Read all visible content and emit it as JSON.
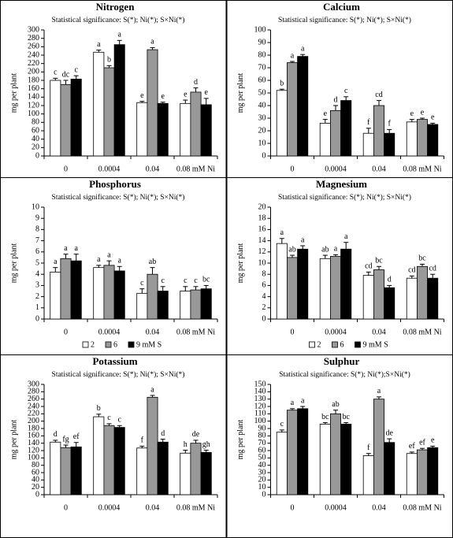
{
  "chart_data": [
    {
      "type": "bar",
      "title": "Nitrogen",
      "subtitle": "Statistical significance: S(*); Ni(*); S×Ni(*)",
      "y_label": "mg per plant",
      "categories": [
        "0",
        "0.0004",
        "0.04",
        "0.08 mM Ni"
      ],
      "ylim": [
        0,
        300
      ],
      "yticks": [
        0,
        20,
        40,
        60,
        80,
        100,
        120,
        140,
        160,
        180,
        200,
        220,
        240,
        260,
        280,
        300
      ],
      "series": [
        {
          "color": "#ffffff",
          "values": [
            180,
            247,
            127,
            125
          ],
          "errors": [
            5,
            5,
            3,
            8
          ],
          "letters": [
            "c",
            "a",
            "e",
            "e"
          ]
        },
        {
          "color": "#999999",
          "values": [
            170,
            210,
            253,
            152
          ],
          "errors": [
            10,
            5,
            5,
            10
          ],
          "letters": [
            "dc",
            "b",
            "a",
            "d"
          ]
        },
        {
          "color": "#000000",
          "values": [
            183,
            265,
            125,
            122
          ],
          "errors": [
            8,
            10,
            3,
            15
          ],
          "letters": [
            "c",
            "a",
            "e",
            "e"
          ]
        }
      ]
    },
    {
      "type": "bar",
      "title": "Calcium",
      "subtitle": "Statistical significance: S(*); Ni(*); S×Ni(*)",
      "y_label": "mg per plant",
      "categories": [
        "0",
        "0.0004",
        "0.04",
        "0.08 mM Ni"
      ],
      "ylim": [
        0,
        100
      ],
      "yticks": [
        0,
        10,
        20,
        30,
        40,
        50,
        60,
        70,
        80,
        90,
        100
      ],
      "series": [
        {
          "color": "#ffffff",
          "values": [
            52,
            26,
            18,
            27
          ],
          "errors": [
            1,
            3,
            4,
            2
          ],
          "letters": [
            "b",
            "e",
            "f",
            "e"
          ]
        },
        {
          "color": "#999999",
          "values": [
            74,
            36,
            40,
            29
          ],
          "errors": [
            1,
            4,
            4,
            1
          ],
          "letters": [
            "a",
            "d",
            "cd",
            "e"
          ]
        },
        {
          "color": "#000000",
          "values": [
            79,
            44,
            18,
            25
          ],
          "errors": [
            1.5,
            3,
            3,
            1
          ],
          "letters": [
            "a",
            "c",
            "f",
            "e"
          ]
        }
      ]
    },
    {
      "type": "bar",
      "title": "Phosphorus",
      "subtitle": "Statistical significance: S(*); Ni(*); S×Ni(*)",
      "y_label": "mg per plant",
      "categories": [
        "0",
        "0.0004",
        "0.04",
        "0.08 mM Ni"
      ],
      "ylim": [
        0,
        10
      ],
      "yticks": [
        0,
        1,
        2,
        3,
        4,
        5,
        6,
        7,
        8,
        9,
        10
      ],
      "legend": "bottom",
      "series": [
        {
          "name": "2",
          "color": "#ffffff",
          "values": [
            4.2,
            4.6,
            2.3,
            2.5
          ],
          "errors": [
            0.4,
            0.2,
            0.4,
            0.4
          ],
          "letters": [
            "a",
            "a",
            "c",
            "c"
          ]
        },
        {
          "name": "6",
          "color": "#999999",
          "values": [
            5.4,
            4.8,
            4.0,
            2.6
          ],
          "errors": [
            0.4,
            0.4,
            0.6,
            0.3
          ],
          "letters": [
            "a",
            "a",
            "ab",
            "c"
          ]
        },
        {
          "name": "9 mM S",
          "color": "#000000",
          "values": [
            5.2,
            4.3,
            2.5,
            2.7
          ],
          "errors": [
            0.6,
            0.4,
            0.4,
            0.3
          ],
          "letters": [
            "a",
            "a",
            "c",
            "bc"
          ]
        }
      ]
    },
    {
      "type": "bar",
      "title": "Magnesium",
      "subtitle": "Statistical significance: S(*); Ni(*); S×Ni(*)",
      "y_label": "mg per plant",
      "categories": [
        "0",
        "0.0004",
        "0.04",
        "0.08 mM Ni"
      ],
      "ylim": [
        0,
        20
      ],
      "yticks": [
        0,
        2,
        4,
        6,
        8,
        10,
        12,
        14,
        16,
        18,
        20
      ],
      "legend": "bottom",
      "series": [
        {
          "name": "2",
          "color": "#ffffff",
          "values": [
            13.5,
            10.8,
            7.8,
            7.3
          ],
          "errors": [
            0.9,
            0.6,
            0.6,
            0.4
          ],
          "letters": [
            "a",
            "ab",
            "cd",
            "cd"
          ]
        },
        {
          "name": "6",
          "color": "#999999",
          "values": [
            11,
            11.2,
            8.8,
            9.4
          ],
          "errors": [
            0.4,
            0.3,
            0.6,
            0.4
          ],
          "letters": [
            "ab",
            "a",
            "bc",
            "bc"
          ]
        },
        {
          "name": "9 mM S",
          "color": "#000000",
          "values": [
            12.5,
            12.5,
            5.6,
            7.3
          ],
          "errors": [
            0.6,
            1.2,
            0.4,
            0.7
          ],
          "letters": [
            "a",
            "a",
            "d",
            "cd"
          ]
        }
      ]
    },
    {
      "type": "bar",
      "title": "Potassium",
      "subtitle": "Statistical significance: S(*); Ni(*); S×Ni(*)",
      "y_label": "mg per plant",
      "categories": [
        "0",
        "0.0004",
        "0.04",
        "0.08 mM Ni"
      ],
      "ylim": [
        0,
        300
      ],
      "yticks": [
        0,
        20,
        40,
        60,
        80,
        100,
        120,
        140,
        160,
        180,
        200,
        220,
        240,
        260,
        280,
        300
      ],
      "series": [
        {
          "color": "#ffffff",
          "values": [
            143,
            212,
            127,
            113
          ],
          "errors": [
            5,
            7,
            5,
            8
          ],
          "letters": [
            "d",
            "b",
            "f",
            "h"
          ]
        },
        {
          "color": "#999999",
          "values": [
            128,
            188,
            265,
            140
          ],
          "errors": [
            7,
            5,
            5,
            8
          ],
          "letters": [
            "fg",
            "c",
            "a",
            "de"
          ]
        },
        {
          "color": "#000000",
          "values": [
            130,
            183,
            143,
            115
          ],
          "errors": [
            12,
            5,
            8,
            6
          ],
          "letters": [
            "ef",
            "c",
            "d",
            "gh"
          ]
        }
      ]
    },
    {
      "type": "bar",
      "title": "Sulphur",
      "subtitle": "Statistical significance: S(*); Ni(*);S×Ni(*)",
      "y_label": "mg per plant",
      "categories": [
        "0",
        "0.0004",
        "0.04",
        "0.08 mM Ni"
      ],
      "ylim": [
        0,
        150
      ],
      "yticks": [
        0,
        10,
        20,
        30,
        40,
        50,
        60,
        70,
        80,
        90,
        100,
        110,
        120,
        130,
        140,
        150
      ],
      "series": [
        {
          "color": "#ffffff",
          "values": [
            85,
            96,
            53,
            56
          ],
          "errors": [
            3,
            2,
            3,
            2
          ],
          "letters": [
            "c",
            "bc",
            "f",
            "ef"
          ]
        },
        {
          "color": "#999999",
          "values": [
            115,
            110,
            130,
            61
          ],
          "errors": [
            2,
            5,
            3,
            2
          ],
          "letters": [
            "a",
            "ab",
            "a",
            "ef"
          ]
        },
        {
          "color": "#000000",
          "values": [
            117,
            96,
            71,
            64
          ],
          "errors": [
            3,
            2,
            5,
            2
          ],
          "letters": [
            "a",
            "bc",
            "de",
            "e"
          ]
        }
      ]
    }
  ]
}
